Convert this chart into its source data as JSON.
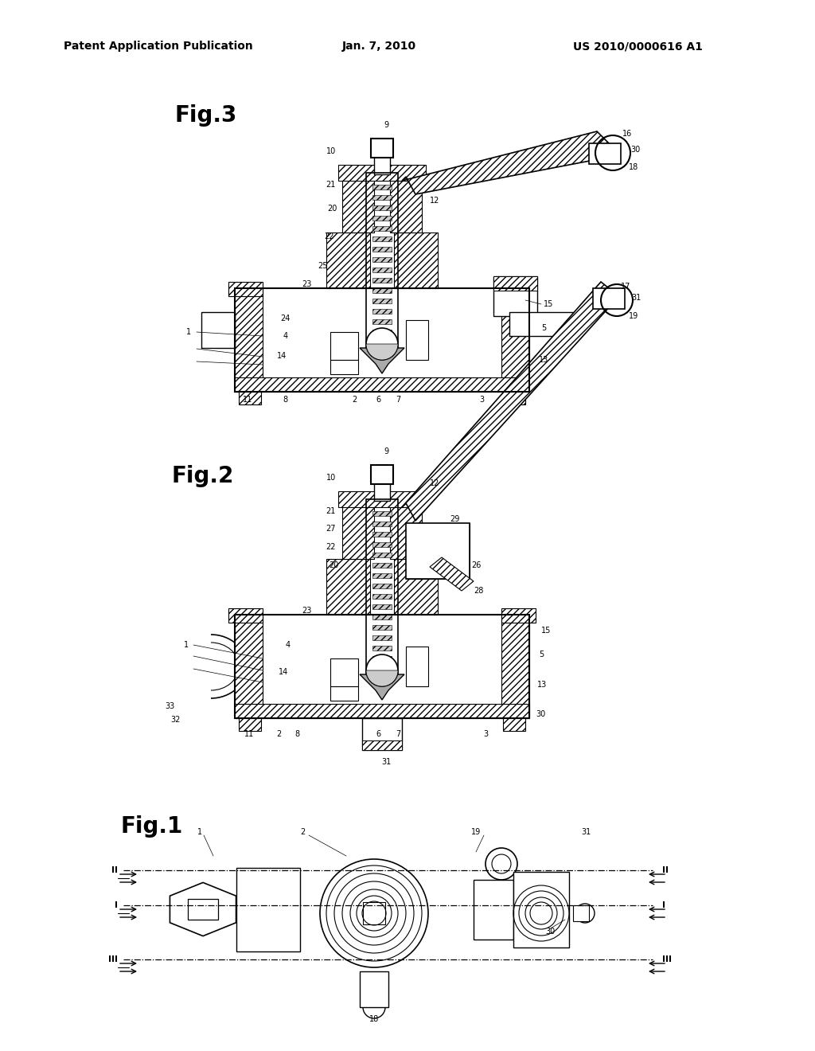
{
  "background_color": "#ffffff",
  "header_left": "Patent Application Publication",
  "header_center": "Jan. 7, 2010",
  "header_right": "US 2010/0000616 A1",
  "page_width": 10.24,
  "page_height": 13.2
}
